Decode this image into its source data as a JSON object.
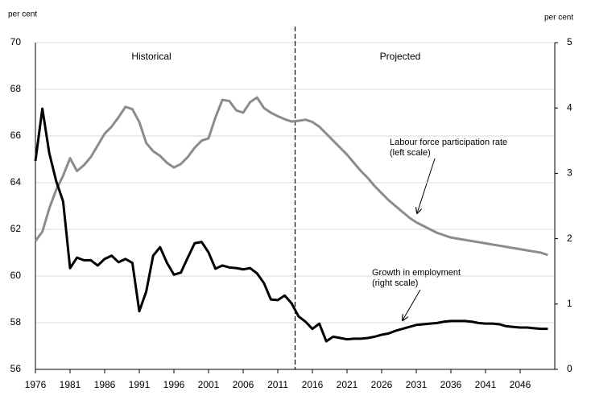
{
  "chart_data": {
    "type": "line",
    "y_label": "per cent",
    "y2_label": "per cent",
    "annotations": {
      "historical": "Historical",
      "projected": "Projected",
      "participation": [
        "Labour force participation rate",
        "(left scale)"
      ],
      "employment": [
        "Growth in employment",
        "(right scale)"
      ]
    },
    "projection_start": 2013.5,
    "x": [
      1976,
      1977,
      1978,
      1979,
      1980,
      1981,
      1982,
      1983,
      1984,
      1985,
      1986,
      1987,
      1988,
      1989,
      1990,
      1991,
      1992,
      1993,
      1994,
      1995,
      1996,
      1997,
      1998,
      1999,
      2000,
      2001,
      2002,
      2003,
      2004,
      2005,
      2006,
      2007,
      2008,
      2009,
      2010,
      2011,
      2012,
      2013,
      2014,
      2015,
      2016,
      2017,
      2018,
      2019,
      2020,
      2021,
      2022,
      2023,
      2024,
      2025,
      2026,
      2027,
      2028,
      2029,
      2030,
      2031,
      2032,
      2033,
      2034,
      2035,
      2036,
      2037,
      2038,
      2039,
      2040,
      2041,
      2042,
      2043,
      2044,
      2045,
      2046,
      2047,
      2048,
      2049,
      2050
    ],
    "xlim": [
      1976,
      2051
    ],
    "xticks": [
      1976,
      1981,
      1986,
      1991,
      1996,
      2001,
      2006,
      2011,
      2016,
      2021,
      2026,
      2031,
      2036,
      2041,
      2046
    ],
    "ylim": [
      56,
      70
    ],
    "yticks": [
      56,
      58,
      60,
      62,
      64,
      66,
      68,
      70
    ],
    "y2lim": [
      0,
      5
    ],
    "y2ticks": [
      0,
      1,
      2,
      3,
      4,
      5
    ],
    "grid": true,
    "series": [
      {
        "name": "Labour force participation rate",
        "color": "#8c8c8c",
        "values": [
          61.5,
          61.9,
          62.9,
          63.7,
          64.3,
          65.05,
          64.5,
          64.75,
          65.1,
          65.6,
          66.1,
          66.4,
          66.8,
          67.25,
          67.15,
          66.6,
          65.7,
          65.35,
          65.15,
          64.85,
          64.65,
          64.8,
          65.1,
          65.5,
          65.8,
          65.9,
          66.8,
          67.55,
          67.5,
          67.1,
          67.0,
          67.45,
          67.65,
          67.2,
          67.0,
          66.85,
          66.72,
          66.62,
          66.65,
          66.7,
          66.6,
          66.4,
          66.1,
          65.8,
          65.5,
          65.2,
          64.85,
          64.5,
          64.2,
          63.85,
          63.55,
          63.25,
          63.0,
          62.75,
          62.5,
          62.3,
          62.15,
          62.0,
          61.85,
          61.75,
          61.65,
          61.6,
          61.55,
          61.5,
          61.45,
          61.4,
          61.35,
          61.3,
          61.25,
          61.2,
          61.15,
          61.1,
          61.05,
          61.0,
          60.9
        ]
      },
      {
        "name": "Growth in employment",
        "color": "#000000",
        "axis": "y2",
        "values": [
          3.19,
          3.99,
          3.31,
          2.88,
          2.57,
          1.55,
          1.71,
          1.67,
          1.67,
          1.59,
          1.69,
          1.74,
          1.64,
          1.69,
          1.63,
          0.89,
          1.19,
          1.74,
          1.87,
          1.63,
          1.45,
          1.48,
          1.71,
          1.93,
          1.95,
          1.79,
          1.54,
          1.59,
          1.56,
          1.55,
          1.53,
          1.55,
          1.47,
          1.32,
          1.07,
          1.06,
          1.13,
          1.01,
          0.81,
          0.73,
          0.62,
          0.7,
          0.43,
          0.5,
          0.48,
          0.46,
          0.47,
          0.47,
          0.48,
          0.5,
          0.53,
          0.55,
          0.59,
          0.62,
          0.65,
          0.68,
          0.69,
          0.7,
          0.71,
          0.73,
          0.74,
          0.74,
          0.74,
          0.73,
          0.71,
          0.7,
          0.7,
          0.69,
          0.66,
          0.65,
          0.64,
          0.64,
          0.63,
          0.62,
          0.62
        ]
      }
    ]
  }
}
